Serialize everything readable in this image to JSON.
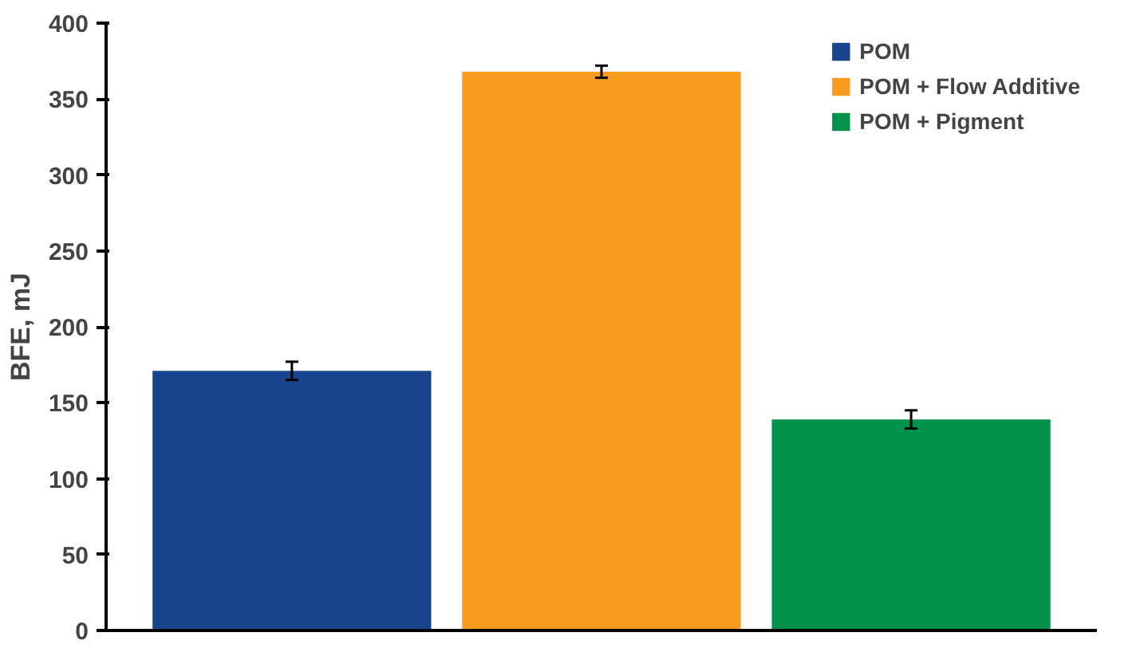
{
  "chart_data": {
    "type": "bar",
    "ylabel": "BFE, mJ",
    "categories": [
      null,
      null,
      null
    ],
    "series": [
      {
        "name": "POM",
        "color": "#17448c",
        "values": [
          171,
          null,
          null
        ],
        "errors": [
          6,
          null,
          null
        ]
      },
      {
        "name": "POM + Flow Additive",
        "color": "#f89b1e",
        "values": [
          null,
          368,
          null
        ],
        "errors": [
          null,
          4,
          null
        ]
      },
      {
        "name": "POM + Pigment",
        "color": "#00924a",
        "values": [
          null,
          null,
          139
        ],
        "errors": [
          null,
          null,
          6
        ]
      }
    ],
    "ylim": [
      0,
      400
    ],
    "yticks": [
      0,
      50,
      100,
      150,
      200,
      250,
      300,
      350,
      400
    ],
    "grid": false,
    "legend": "top right"
  }
}
